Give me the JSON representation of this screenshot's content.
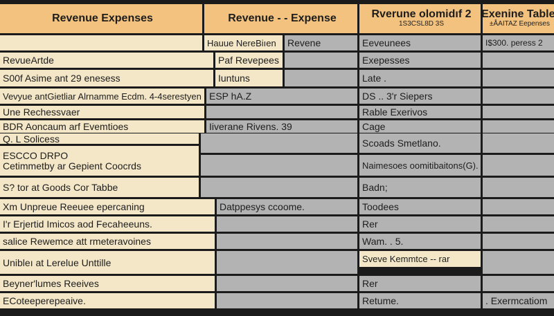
{
  "headers": {
    "col1": "Revenue Expenses",
    "col2": "Revenue - - Expense",
    "col3_title": "Rverune olomidıf 2",
    "col3_sub": "1S3CSL8D 3S",
    "col4_title": "Exenine Tablel",
    "col4_sub": "±ÅAITAZ Eepenses"
  },
  "row1": {
    "mid_a": "Hauue NereBiıen",
    "mid_b": "Revene",
    "c3": "Eeveunees",
    "c4": "I$300. peress 2"
  },
  "rows": [
    {
      "c1": "RevueArtde",
      "c2": "Paf Revepees",
      "c3": "Exepesses",
      "c4": ""
    },
    {
      "c1": "S00f Asime ant 29 enesess",
      "c2": "Iuntuns",
      "c3": "Late .",
      "c4": ""
    },
    {
      "c1": "Vevyue antGietliar Alrnamme Ecdm. 4-4serestyen",
      "c2": "ESP hA.Z",
      "c3": "DS .. 3'r Siepers",
      "c4": ""
    },
    {
      "c1": "Une Rechessvaer",
      "c2": "",
      "c3": "Rable Exerivos",
      "c4": ""
    },
    {
      "c1": "BDR Aoncaum arf Evemtioes",
      "c2": "Iiverane Rivens. 39",
      "c3": "Cage",
      "c4": ""
    }
  ],
  "block": {
    "a": "Q. L Solicess",
    "b_line1": "ESCCO DRPO",
    "b_line2": "Cetimmetby ar Gepient Coocrds",
    "c": "S? tor at Goods Cor Tabbe",
    "r3_1": "Scoads Smetlano.",
    "r3_2": "Naimesoes oomitibaitons(G).",
    "r3_3": "Badn;"
  },
  "lower": [
    {
      "c1": "Xm Unpreue Reeuee epercaning",
      "c2": "Datppesys ccoome.",
      "c3": "Toodees",
      "c4": ""
    },
    {
      "c1": "I'r Erjertid Imicos aod Fecaheeuns.",
      "c2": "",
      "c3": "Rer",
      "c4": ""
    },
    {
      "c1": "salice Rewemce att rmeteravoines",
      "c2": "",
      "c3": "Wam. . 5.",
      "c4": ""
    },
    {
      "c1": "Unibleı at Lerelue Unttille",
      "c2": "",
      "c3": "Sveve Kemmtce -- rar",
      "c4": ""
    },
    {
      "c1": "Beyner'lumes Reeives",
      "c2": "",
      "c3": "Rer",
      "c4": ""
    },
    {
      "c1": "ECoteeperepeaive.",
      "c2": "",
      "c3": "Retume.",
      "c4": ". Exermcatiom"
    }
  ],
  "colors": {
    "header": "#f3c27e",
    "cream": "#f4e7c8",
    "gray": "#b3b3b4",
    "border": "#1b1b1b"
  }
}
